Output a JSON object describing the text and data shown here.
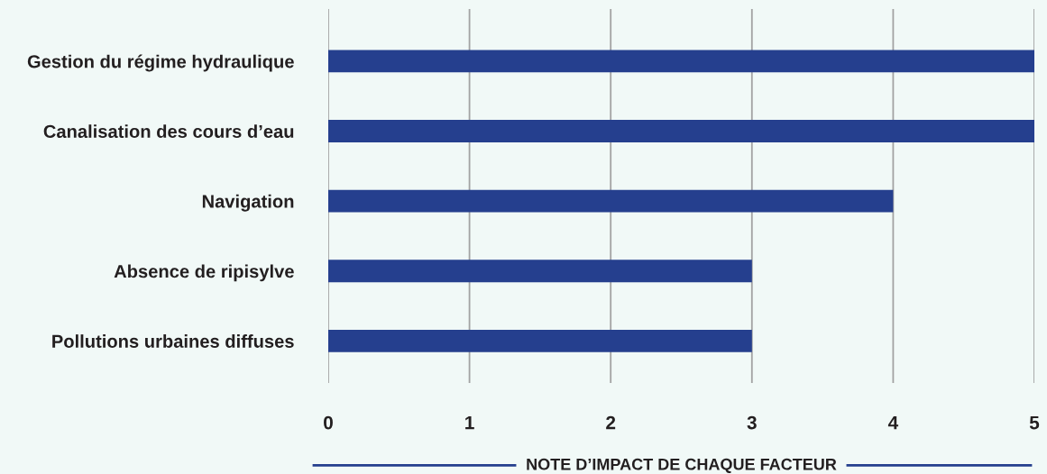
{
  "chart_data": {
    "type": "bar",
    "orientation": "horizontal",
    "categories": [
      "Gestion du régime hydraulique",
      "Canalisation des cours d’eau",
      "Navigation",
      "Absence de ripisylve",
      "Pollutions urbaines diffuses"
    ],
    "values": [
      5,
      5,
      4,
      3,
      3
    ],
    "color": "#253f8e",
    "xlim": [
      0,
      5
    ],
    "xticks": [
      0,
      1,
      2,
      3,
      4,
      5
    ],
    "grid": "x",
    "xlabel": "NOTE D’IMPACT DE CHAQUE FACTEUR"
  }
}
